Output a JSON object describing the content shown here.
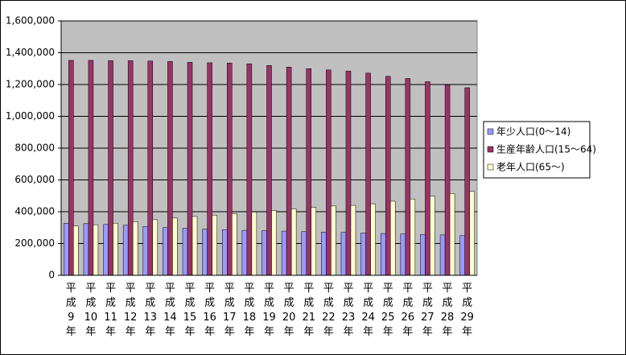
{
  "chart_data": {
    "type": "bar",
    "categories": [
      "平成9年",
      "平成10年",
      "平成11年",
      "平成12年",
      "平成13年",
      "平成14年",
      "平成15年",
      "平成16年",
      "平成17年",
      "平成18年",
      "平成19年",
      "平成20年",
      "平成21年",
      "平成22年",
      "平成23年",
      "平成24年",
      "平成25年",
      "平成26年",
      "平成27年",
      "平成28年",
      "平成29年"
    ],
    "series": [
      {
        "name": "年少人口(0～14)",
        "color": "#9999ff",
        "values": [
          328000,
          325000,
          320000,
          315000,
          307000,
          300000,
          295000,
          290000,
          287000,
          283000,
          280000,
          278000,
          275000,
          272000,
          270000,
          266000,
          263000,
          260000,
          257000,
          254000,
          250000
        ]
      },
      {
        "name": "生産年齢人口(15～64)",
        "color": "#993366",
        "values": [
          1352000,
          1352000,
          1350000,
          1350000,
          1348000,
          1345000,
          1340000,
          1337000,
          1335000,
          1330000,
          1320000,
          1310000,
          1300000,
          1292000,
          1285000,
          1272000,
          1252000,
          1238000,
          1218000,
          1198000,
          1180000
        ]
      },
      {
        "name": "老年人口(65～)",
        "color": "#ffffcc",
        "values": [
          310000,
          318000,
          328000,
          338000,
          350000,
          360000,
          370000,
          378000,
          388000,
          398000,
          408000,
          418000,
          428000,
          436000,
          440000,
          450000,
          466000,
          480000,
          498000,
          515000,
          528000
        ]
      }
    ],
    "ylim": [
      0,
      1600000
    ],
    "yticks": [
      0,
      {
        "value": 200000,
        "label": "200,000"
      },
      {
        "value": 400000,
        "label": "400,000"
      },
      {
        "value": 600000,
        "label": "600,000"
      },
      {
        "value": 800000,
        "label": "800,000"
      },
      {
        "value": 1000000,
        "label": "1,000,000"
      },
      {
        "value": 1200000,
        "label": "1,200,000"
      },
      {
        "value": 1400000,
        "label": "1,400,000"
      },
      {
        "value": 1600000,
        "label": "1,600,000"
      }
    ],
    "grid": true,
    "legend": "right",
    "plot_background": "#c0c0c0"
  }
}
